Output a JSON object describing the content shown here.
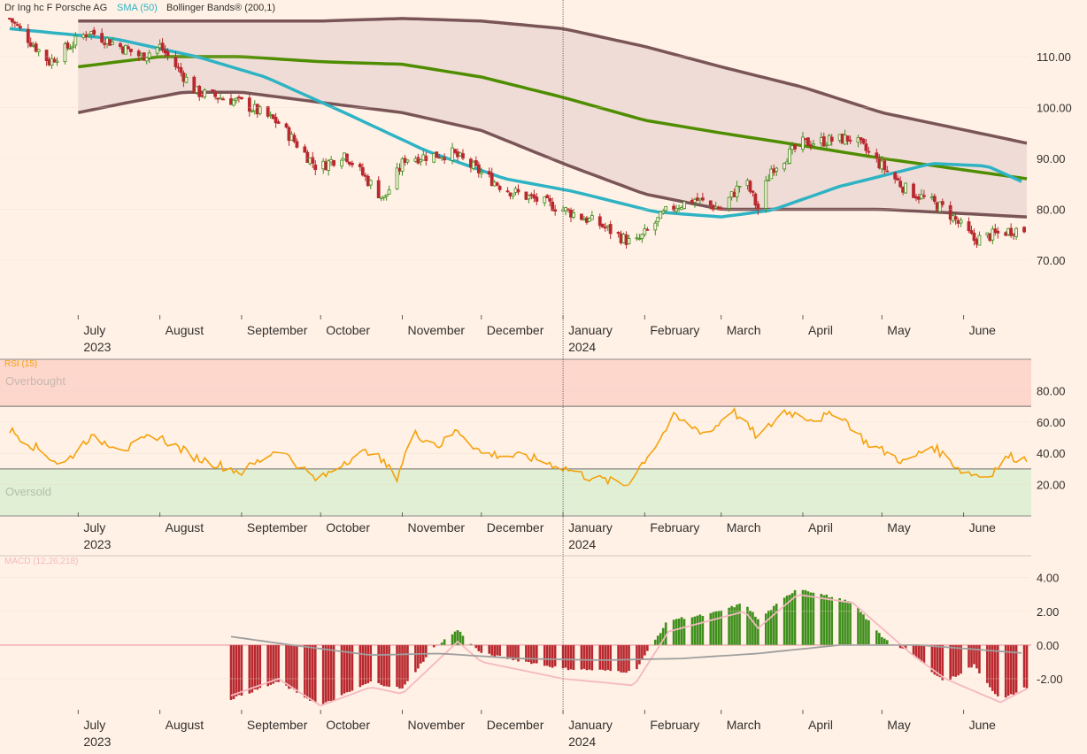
{
  "chart_data": [
    {
      "type": "candlestick",
      "legend": [
        {
          "label": "Dr Ing hc F Porsche AG",
          "color": "#33302e"
        },
        {
          "label": "SMA (50)",
          "color": "#2eb3c4"
        },
        {
          "label": "Bollinger Bands® (200,1)",
          "color": "#33302e"
        }
      ],
      "y_ticks": [
        "110.00",
        "100.00",
        "90.00",
        "80.00",
        "70.00"
      ],
      "ylim": [
        62,
        118
      ],
      "x_months": [
        {
          "label": "July",
          "year": "2023"
        },
        {
          "label": "August",
          "year": ""
        },
        {
          "label": "September",
          "year": ""
        },
        {
          "label": "October",
          "year": ""
        },
        {
          "label": "November",
          "year": ""
        },
        {
          "label": "December",
          "year": ""
        },
        {
          "label": "January",
          "year": "2024"
        },
        {
          "label": "February",
          "year": ""
        },
        {
          "label": "March",
          "year": ""
        },
        {
          "label": "April",
          "year": ""
        },
        {
          "label": "May",
          "year": ""
        },
        {
          "label": "June",
          "year": ""
        }
      ],
      "price_keypoints": [
        {
          "date": "2023-06-05",
          "close": 117.5
        },
        {
          "date": "2023-06-20",
          "close": 109
        },
        {
          "date": "2023-07-05",
          "close": 115
        },
        {
          "date": "2023-07-25",
          "close": 110
        },
        {
          "date": "2023-08-01",
          "close": 112
        },
        {
          "date": "2023-08-15",
          "close": 103
        },
        {
          "date": "2023-09-01",
          "close": 101
        },
        {
          "date": "2023-09-15",
          "close": 97
        },
        {
          "date": "2023-09-30",
          "close": 88
        },
        {
          "date": "2023-10-10",
          "close": 91
        },
        {
          "date": "2023-10-25",
          "close": 82
        },
        {
          "date": "2023-11-02",
          "close": 90
        },
        {
          "date": "2023-11-20",
          "close": 91
        },
        {
          "date": "2023-12-10",
          "close": 84
        },
        {
          "date": "2024-01-01",
          "close": 80
        },
        {
          "date": "2024-01-15",
          "close": 77
        },
        {
          "date": "2024-01-28",
          "close": 73
        },
        {
          "date": "2024-02-10",
          "close": 80
        },
        {
          "date": "2024-02-20",
          "close": 82
        },
        {
          "date": "2024-03-01",
          "close": 80
        },
        {
          "date": "2024-03-10",
          "close": 86
        },
        {
          "date": "2024-03-15",
          "close": 80
        },
        {
          "date": "2024-03-20",
          "close": 88
        },
        {
          "date": "2024-04-01",
          "close": 93
        },
        {
          "date": "2024-04-20",
          "close": 94
        },
        {
          "date": "2024-05-10",
          "close": 84
        },
        {
          "date": "2024-05-25",
          "close": 80
        },
        {
          "date": "2024-06-05",
          "close": 74
        },
        {
          "date": "2024-06-20",
          "close": 76
        }
      ],
      "sma50_keypoints": [
        {
          "date": "2023-06-05",
          "value": 115.5
        },
        {
          "date": "2023-07-15",
          "value": 113.5
        },
        {
          "date": "2023-08-15",
          "value": 110
        },
        {
          "date": "2023-09-10",
          "value": 106
        },
        {
          "date": "2023-10-10",
          "value": 99
        },
        {
          "date": "2023-11-10",
          "value": 91.5
        },
        {
          "date": "2023-12-10",
          "value": 86
        },
        {
          "date": "2024-01-05",
          "value": 83.5
        },
        {
          "date": "2024-02-05",
          "value": 79.5
        },
        {
          "date": "2024-03-01",
          "value": 78.5
        },
        {
          "date": "2024-03-20",
          "value": 79.8
        },
        {
          "date": "2024-04-15",
          "value": 84.5
        },
        {
          "date": "2024-05-20",
          "value": 89
        },
        {
          "date": "2024-06-10",
          "value": 88.5
        },
        {
          "date": "2024-06-25",
          "value": 85
        }
      ],
      "bollinger_mid_keypoints": [
        {
          "date": "2023-07-01",
          "value": 108
        },
        {
          "date": "2023-08-01",
          "value": 110
        },
        {
          "date": "2023-09-01",
          "value": 110
        },
        {
          "date": "2023-10-01",
          "value": 109
        },
        {
          "date": "2023-11-01",
          "value": 108.5
        },
        {
          "date": "2023-12-01",
          "value": 106
        },
        {
          "date": "2024-01-01",
          "value": 102
        },
        {
          "date": "2024-02-01",
          "value": 97.5
        },
        {
          "date": "2024-03-01",
          "value": 95
        },
        {
          "date": "2024-04-01",
          "value": 92.5
        },
        {
          "date": "2024-05-01",
          "value": 90
        },
        {
          "date": "2024-06-25",
          "value": 86
        }
      ],
      "bollinger_upper_keypoints": [
        {
          "date": "2023-07-01",
          "value": 117
        },
        {
          "date": "2023-08-01",
          "value": 117
        },
        {
          "date": "2023-09-01",
          "value": 117
        },
        {
          "date": "2023-10-01",
          "value": 117
        },
        {
          "date": "2023-11-01",
          "value": 117.5
        },
        {
          "date": "2023-12-01",
          "value": 117
        },
        {
          "date": "2024-01-01",
          "value": 115.5
        },
        {
          "date": "2024-02-01",
          "value": 112
        },
        {
          "date": "2024-03-01",
          "value": 108
        },
        {
          "date": "2024-04-01",
          "value": 104
        },
        {
          "date": "2024-05-01",
          "value": 99
        },
        {
          "date": "2024-06-25",
          "value": 93
        }
      ],
      "bollinger_lower_keypoints": [
        {
          "date": "2023-07-01",
          "value": 99
        },
        {
          "date": "2023-07-20",
          "value": 101
        },
        {
          "date": "2023-08-10",
          "value": 103
        },
        {
          "date": "2023-09-01",
          "value": 103
        },
        {
          "date": "2023-10-01",
          "value": 101
        },
        {
          "date": "2023-11-01",
          "value": 99
        },
        {
          "date": "2023-12-01",
          "value": 95.5
        },
        {
          "date": "2024-01-01",
          "value": 89
        },
        {
          "date": "2024-02-01",
          "value": 83
        },
        {
          "date": "2024-03-01",
          "value": 80
        },
        {
          "date": "2024-04-01",
          "value": 80
        },
        {
          "date": "2024-05-01",
          "value": 80
        },
        {
          "date": "2024-06-25",
          "value": 78.5
        }
      ]
    },
    {
      "type": "line",
      "title": "RSI (15)",
      "zone_labels": {
        "overbought": "Overbought",
        "oversold": "Oversold"
      },
      "thresholds": [
        70,
        30
      ],
      "y_ticks": [
        "80.00",
        "60.00",
        "40.00",
        "20.00"
      ],
      "ylim": [
        0,
        100
      ],
      "keypoints": [
        {
          "date": "2023-06-05",
          "value": 55
        },
        {
          "date": "2023-06-25",
          "value": 32
        },
        {
          "date": "2023-07-05",
          "value": 50
        },
        {
          "date": "2023-07-20",
          "value": 43
        },
        {
          "date": "2023-07-30",
          "value": 52
        },
        {
          "date": "2023-08-15",
          "value": 37
        },
        {
          "date": "2023-09-01",
          "value": 28
        },
        {
          "date": "2023-09-15",
          "value": 43
        },
        {
          "date": "2023-09-30",
          "value": 22
        },
        {
          "date": "2023-10-10",
          "value": 35
        },
        {
          "date": "2023-10-20",
          "value": 42
        },
        {
          "date": "2023-10-30",
          "value": 25
        },
        {
          "date": "2023-11-05",
          "value": 53
        },
        {
          "date": "2023-11-15",
          "value": 45
        },
        {
          "date": "2023-11-22",
          "value": 55
        },
        {
          "date": "2023-12-01",
          "value": 40
        },
        {
          "date": "2023-12-20",
          "value": 37
        },
        {
          "date": "2024-01-01",
          "value": 31
        },
        {
          "date": "2024-01-10",
          "value": 25
        },
        {
          "date": "2024-01-25",
          "value": 20
        },
        {
          "date": "2024-02-05",
          "value": 45
        },
        {
          "date": "2024-02-12",
          "value": 63
        },
        {
          "date": "2024-02-25",
          "value": 52
        },
        {
          "date": "2024-03-05",
          "value": 68
        },
        {
          "date": "2024-03-15",
          "value": 50
        },
        {
          "date": "2024-03-25",
          "value": 67
        },
        {
          "date": "2024-04-05",
          "value": 62
        },
        {
          "date": "2024-04-15",
          "value": 65
        },
        {
          "date": "2024-04-25",
          "value": 47
        },
        {
          "date": "2024-05-10",
          "value": 34
        },
        {
          "date": "2024-05-20",
          "value": 45
        },
        {
          "date": "2024-06-01",
          "value": 28
        },
        {
          "date": "2024-06-10",
          "value": 25
        },
        {
          "date": "2024-06-18",
          "value": 38
        },
        {
          "date": "2024-06-25",
          "value": 36
        }
      ]
    },
    {
      "type": "bar",
      "title": "MACD (12,26,218)",
      "y_ticks": [
        "4.00",
        "2.00",
        "0.00",
        "-2.00"
      ],
      "ylim": [
        -4,
        5
      ],
      "histogram_keypoints": [
        {
          "date": "2023-08-28",
          "value": -3.2
        },
        {
          "date": "2023-09-15",
          "value": -2.2
        },
        {
          "date": "2023-10-01",
          "value": -3.6
        },
        {
          "date": "2023-10-20",
          "value": -2.2
        },
        {
          "date": "2023-11-01",
          "value": -2.6
        },
        {
          "date": "2023-11-12",
          "value": -0.3
        },
        {
          "date": "2023-11-22",
          "value": 0.9
        },
        {
          "date": "2023-12-01",
          "value": -0.5
        },
        {
          "date": "2024-01-01",
          "value": -1.4
        },
        {
          "date": "2024-01-28",
          "value": -1.6
        },
        {
          "date": "2024-02-10",
          "value": 1.5
        },
        {
          "date": "2024-02-25",
          "value": 1.8
        },
        {
          "date": "2024-03-10",
          "value": 2.5
        },
        {
          "date": "2024-03-15",
          "value": 1.5
        },
        {
          "date": "2024-03-30",
          "value": 3.4
        },
        {
          "date": "2024-04-20",
          "value": 2.5
        },
        {
          "date": "2024-05-01",
          "value": 0.5
        },
        {
          "date": "2024-05-12",
          "value": -0.5
        },
        {
          "date": "2024-05-25",
          "value": -2.2
        },
        {
          "date": "2024-06-05",
          "value": -1.2
        },
        {
          "date": "2024-06-15",
          "value": -3.3
        },
        {
          "date": "2024-06-25",
          "value": -2.5
        }
      ],
      "signal_keypoints": [
        {
          "date": "2023-08-28",
          "value": 0.5
        },
        {
          "date": "2023-09-20",
          "value": 0
        },
        {
          "date": "2023-10-20",
          "value": -0.6
        },
        {
          "date": "2023-11-15",
          "value": -0.5
        },
        {
          "date": "2023-12-15",
          "value": -0.8
        },
        {
          "date": "2024-01-15",
          "value": -0.9
        },
        {
          "date": "2024-02-15",
          "value": -0.8
        },
        {
          "date": "2024-03-15",
          "value": -0.5
        },
        {
          "date": "2024-04-15",
          "value": 0
        },
        {
          "date": "2024-05-15",
          "value": 0
        },
        {
          "date": "2024-06-25",
          "value": -0.5
        }
      ],
      "macd_keypoints": [
        {
          "date": "2023-08-28",
          "value": -3
        },
        {
          "date": "2023-09-15",
          "value": -2
        },
        {
          "date": "2023-10-01",
          "value": -3.6
        },
        {
          "date": "2023-10-20",
          "value": -2.5
        },
        {
          "date": "2023-11-01",
          "value": -2.9
        },
        {
          "date": "2023-11-22",
          "value": 0.2
        },
        {
          "date": "2023-12-01",
          "value": -1
        },
        {
          "date": "2024-01-01",
          "value": -2
        },
        {
          "date": "2024-01-28",
          "value": -2.4
        },
        {
          "date": "2024-02-10",
          "value": 0.8
        },
        {
          "date": "2024-03-10",
          "value": 2
        },
        {
          "date": "2024-03-15",
          "value": 1
        },
        {
          "date": "2024-03-30",
          "value": 3
        },
        {
          "date": "2024-04-20",
          "value": 2.5
        },
        {
          "date": "2024-05-12",
          "value": -0.5
        },
        {
          "date": "2024-05-25",
          "value": -2
        },
        {
          "date": "2024-06-15",
          "value": -3.4
        },
        {
          "date": "2024-06-25",
          "value": -2.6
        }
      ]
    }
  ],
  "colors": {
    "background": "#fff1e5",
    "up": "#3e8e1c",
    "down": "#b8282e",
    "sma": "#2eb3c4",
    "bb_mid": "#4e8d00",
    "bb_band": "#7a5558",
    "bb_fill": "#f0dcd6",
    "rsi_line": "#f5a10a",
    "rsi_overbought_fill": "#fdd6cc",
    "rsi_oversold_fill": "#e1f0d4",
    "macd_line": "#f5b8c0",
    "signal_line": "#9e9e9e",
    "zero_line": "#f3a6ad",
    "axis_text": "#33302e",
    "grid": "#e8d8c8"
  }
}
